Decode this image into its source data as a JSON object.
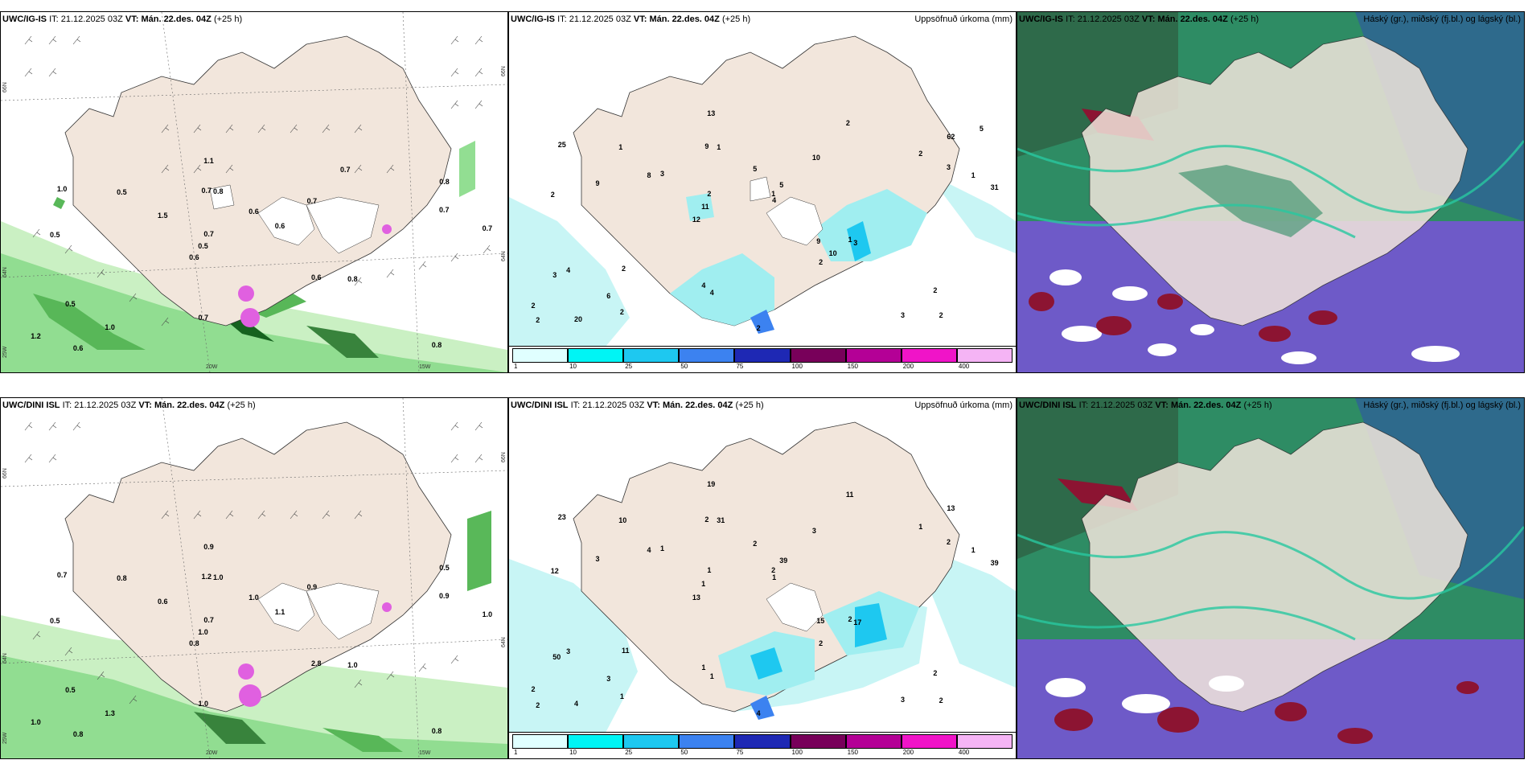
{
  "rows": [
    {
      "model": "UWC/IG-IS",
      "it_label": "IT:",
      "it": "21.12.2025 03Z",
      "vt_label": "VT:",
      "vt": "Mán. 22.des. 04Z",
      "lead": "(+25 h)"
    },
    {
      "model": "UWC/DINI ISL",
      "it_label": "IT:",
      "it": "21.12.2025 03Z",
      "vt_label": "VT:",
      "vt": "Mán. 22.des. 04Z",
      "lead": "(+25 h)"
    }
  ],
  "precip_title": "Uppsöfnuð úrkoma (mm)",
  "cloud_title": "Háský (gr.), miðský (fj.bl.) og lágský (bl.)",
  "coords": {
    "lat66": "66N",
    "lat64": "64N",
    "lon25": "25W",
    "lon20": "20W",
    "lon15": "15W"
  },
  "legend": {
    "ticks": [
      "1",
      "10",
      "25",
      "50",
      "75",
      "100",
      "150",
      "200",
      "400"
    ],
    "colors": [
      "#e0ffff",
      "#00f5f5",
      "#1ec8f0",
      "#3c82f0",
      "#1e28b4",
      "#78005a",
      "#b40096",
      "#f014c8",
      "#f5b4f5"
    ]
  },
  "colors": {
    "land": "#f2e6dc",
    "sea": "#ffffff",
    "wind_light": "#c8f0c0",
    "wind_mid": "#50b450",
    "wind_dark": "#0a5a14",
    "cloud_high": "#6e5ac8",
    "cloud_mid": "#2e8c64",
    "cloud_low": "#28c8a0",
    "cloud_red": "#8c1432",
    "accent_magenta": "#e060e0"
  },
  "wind_labels_top": [
    "0.8",
    "0.5",
    "0.8",
    "0.6",
    "0.7",
    "0.6",
    "0.7",
    "0.6",
    "0.5",
    "1.5",
    "1.2",
    "1.0",
    "0.8",
    "0.6",
    "0.8",
    "1.0",
    "1.1",
    "0.7",
    "0.6",
    "0.7",
    "0.5",
    "0.7",
    "0.7",
    "0.5",
    "0.7"
  ],
  "wind_labels_bottom": [
    "0.8",
    "0.5",
    "0.5",
    "0.8",
    "0.9",
    "0.8",
    "1.2",
    "1.0",
    "0.5",
    "0.6",
    "1.0",
    "1.3",
    "1.0",
    "1.1",
    "1.0",
    "0.7",
    "0.9",
    "1.0",
    "2.8",
    "0.9",
    "1.0",
    "1.0",
    "0.7",
    "0.8"
  ],
  "precip_labels_top": [
    "2",
    "2",
    "62",
    "12",
    "10",
    "20",
    "9",
    "5",
    "4",
    "3",
    "2",
    "6",
    "1",
    "5",
    "3",
    "25",
    "13",
    "31",
    "9",
    "3",
    "11",
    "4",
    "2",
    "1",
    "2",
    "2",
    "3",
    "2",
    "1",
    "2",
    "8",
    "9",
    "2",
    "2",
    "1",
    "1",
    "2",
    "4",
    "4",
    "3",
    "2",
    "5",
    "10"
  ],
  "precip_labels_bottom": [
    "2",
    "12",
    "13",
    "13",
    "3",
    "4",
    "2",
    "2",
    "3",
    "1",
    "2",
    "3",
    "31",
    "39",
    "17",
    "23",
    "19",
    "39",
    "15",
    "2",
    "1",
    "1",
    "1",
    "10",
    "11",
    "11",
    "3",
    "2",
    "2",
    "4",
    "4",
    "3",
    "2",
    "1",
    "1",
    "2",
    "2",
    "1",
    "1",
    "50",
    "1"
  ]
}
